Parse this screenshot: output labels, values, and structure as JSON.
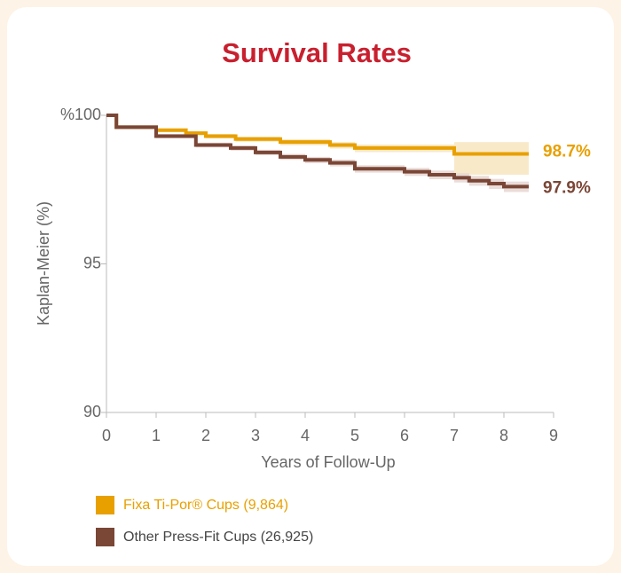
{
  "chart_data": {
    "type": "step",
    "title": "Survival Rates",
    "x_label": "Years of Follow-Up",
    "y_label": "Kaplan-Meier (%)",
    "xlim": [
      0,
      9
    ],
    "xticks": [
      0,
      1,
      2,
      3,
      4,
      5,
      6,
      7,
      8,
      9
    ],
    "ylim": [
      90,
      100
    ],
    "yticks": [
      90,
      95,
      {
        "value": 100,
        "label": "%100"
      }
    ],
    "series": [
      {
        "name": "Fixa Ti-Por® Cups (9,864)",
        "color": "#e8a000",
        "band_color": "#f7e5c0",
        "legend_text_color": "#e8a000",
        "end_label": "98.7%",
        "x": [
          0,
          0.2,
          1,
          1.6,
          2,
          2.6,
          3.5,
          4.5,
          5,
          7,
          8.5
        ],
        "values": [
          100,
          99.6,
          99.5,
          99.4,
          99.3,
          99.2,
          99.1,
          99.0,
          98.9,
          98.7,
          98.7
        ],
        "ci_upper": [
          100,
          99.65,
          99.55,
          99.46,
          99.37,
          99.28,
          99.2,
          99.1,
          99.02,
          99.1,
          99.1
        ],
        "ci_lower": [
          100,
          99.55,
          99.44,
          99.33,
          99.22,
          99.11,
          98.99,
          98.88,
          98.76,
          98.0,
          98.0
        ]
      },
      {
        "name": "Other Press-Fit Cups (26,925)",
        "color": "#7a4636",
        "band_color": "#e6d6d2",
        "legend_text_color": "#444444",
        "end_label": "97.9%",
        "x": [
          0,
          0.2,
          1,
          1.8,
          2.5,
          3,
          3.5,
          4,
          4.5,
          5,
          6,
          6.5,
          7,
          7.3,
          7.7,
          8,
          8.5
        ],
        "values": [
          100,
          99.6,
          99.3,
          99.0,
          98.9,
          98.75,
          98.6,
          98.5,
          98.4,
          98.2,
          98.1,
          98.0,
          97.9,
          97.8,
          97.7,
          97.6,
          97.6
        ],
        "ci_upper": [
          100,
          99.65,
          99.37,
          99.08,
          98.98,
          98.84,
          98.7,
          98.6,
          98.51,
          98.32,
          98.23,
          98.14,
          98.05,
          97.96,
          97.86,
          97.77,
          97.77
        ],
        "ci_lower": [
          100,
          99.55,
          99.23,
          98.92,
          98.81,
          98.66,
          98.5,
          98.39,
          98.28,
          98.07,
          97.96,
          97.85,
          97.74,
          97.63,
          97.52,
          97.42,
          97.42
        ]
      }
    ]
  }
}
